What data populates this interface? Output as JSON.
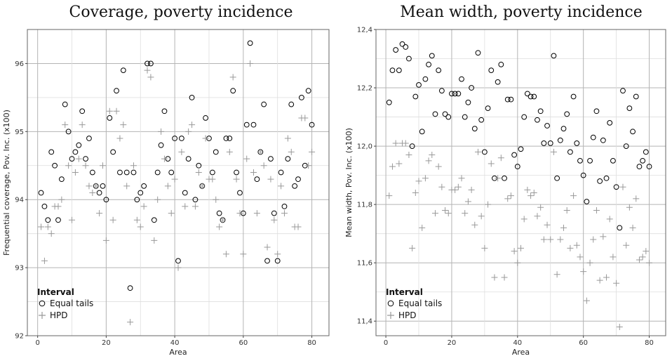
{
  "chart_data": [
    {
      "type": "scatter",
      "title": "Coverage, poverty incidence",
      "xlabel": "Area",
      "ylabel": "Frequential coverage, Pov. Inc. (x100)",
      "xlim": [
        -3,
        85
      ],
      "ylim": [
        92,
        96.5
      ],
      "xticks": [
        0,
        20,
        40,
        60,
        80
      ],
      "yticks": [
        92,
        93,
        94,
        95,
        96
      ],
      "ytick_labels": [
        "92",
        "93",
        "94",
        "95",
        "96"
      ],
      "grid": true,
      "legend": {
        "title": "Interval",
        "placement": "bottom-left"
      },
      "series": [
        {
          "name": "Equal tails",
          "marker": "circle",
          "color": "#000000",
          "values": [
            94.1,
            93.9,
            93.7,
            94.7,
            94.5,
            93.7,
            94.3,
            95.4,
            95.0,
            94.6,
            94.7,
            94.8,
            95.3,
            94.6,
            94.9,
            94.4,
            94.2,
            94.1,
            94.2,
            94.0,
            95.2,
            94.7,
            95.6,
            94.4,
            95.9,
            94.4,
            92.7,
            94.4,
            94.0,
            94.1,
            94.2,
            96.0,
            96.0,
            93.7,
            94.4,
            94.8,
            95.3,
            94.6,
            94.4,
            94.9,
            93.1,
            94.9,
            94.1,
            94.6,
            95.5,
            94.0,
            94.5,
            94.2,
            95.2,
            94.9,
            94.4,
            94.7,
            93.8,
            93.7,
            94.9,
            94.9,
            95.6,
            94.4,
            94.1,
            93.8,
            95.1,
            96.3,
            95.1,
            94.3,
            94.7,
            95.4,
            93.1,
            94.6,
            93.8,
            93.1,
            94.4,
            93.9,
            94.6,
            95.4,
            94.2,
            94.3,
            95.5,
            94.5,
            95.6,
            95.1
          ]
        },
        {
          "name": "HPD",
          "marker": "plus",
          "color": "#999999",
          "values": [
            93.6,
            93.1,
            93.6,
            93.5,
            93.9,
            93.9,
            94.0,
            95.1,
            94.5,
            93.7,
            94.4,
            94.6,
            95.1,
            94.5,
            94.2,
            94.1,
            94.2,
            93.8,
            94.5,
            93.4,
            95.3,
            93.7,
            95.3,
            94.9,
            95.1,
            94.2,
            92.2,
            94.5,
            93.7,
            93.6,
            93.9,
            95.9,
            95.8,
            93.4,
            94.0,
            95.0,
            94.6,
            94.2,
            93.8,
            94.3,
            93.0,
            94.7,
            93.9,
            95.0,
            95.1,
            93.9,
            94.4,
            94.2,
            94.9,
            94.3,
            94.3,
            94.0,
            93.6,
            93.7,
            93.2,
            94.7,
            95.8,
            94.3,
            93.8,
            93.2,
            94.6,
            96.0,
            94.4,
            93.8,
            94.7,
            94.5,
            93.3,
            94.3,
            93.7,
            93.2,
            94.2,
            93.8,
            94.9,
            94.7,
            93.6,
            93.6,
            95.2,
            95.2,
            94.5,
            94.7
          ]
        }
      ]
    },
    {
      "type": "scatter",
      "title": "Mean width, poverty incidence",
      "xlabel": "Area",
      "ylabel": "Mean width, Pov. Inc. (x100)",
      "xlim": [
        -3,
        85
      ],
      "ylim": [
        11.35,
        12.4
      ],
      "xticks": [
        0,
        20,
        40,
        60,
        80
      ],
      "yticks": [
        11.4,
        11.6,
        11.8,
        12.0,
        12.2,
        12.4
      ],
      "ytick_labels": [
        "11,4",
        "11,6",
        "11,8",
        "12,0",
        "12,2",
        "12,4"
      ],
      "grid": true,
      "legend": {
        "title": "Interval",
        "placement": "bottom-left"
      },
      "series": [
        {
          "name": "Equal tails",
          "marker": "circle",
          "color": "#000000",
          "values": [
            12.15,
            12.26,
            12.33,
            12.26,
            12.35,
            12.34,
            12.3,
            12.0,
            12.17,
            12.21,
            12.05,
            12.23,
            12.28,
            12.31,
            12.11,
            12.26,
            12.19,
            12.11,
            12.1,
            12.18,
            12.18,
            12.18,
            12.23,
            12.1,
            12.15,
            12.2,
            12.06,
            12.32,
            12.09,
            11.98,
            12.13,
            12.26,
            11.89,
            12.22,
            12.28,
            11.89,
            12.16,
            12.16,
            11.97,
            11.93,
            11.99,
            12.1,
            12.18,
            12.17,
            12.17,
            12.09,
            12.12,
            12.01,
            12.07,
            12.01,
            12.31,
            11.89,
            12.02,
            12.06,
            12.11,
            11.98,
            12.17,
            12.01,
            11.95,
            11.9,
            11.81,
            11.95,
            12.03,
            12.12,
            11.88,
            12.02,
            11.89,
            12.08,
            11.95,
            11.86,
            11.72,
            12.19,
            12.0,
            12.13,
            12.05,
            12.17,
            11.93,
            11.95,
            11.98,
            11.93
          ]
        },
        {
          "name": "HPD",
          "marker": "plus",
          "color": "#999999",
          "values": [
            11.83,
            11.93,
            12.01,
            11.94,
            12.01,
            12.01,
            11.97,
            11.65,
            11.84,
            11.88,
            11.72,
            11.89,
            11.95,
            11.97,
            11.77,
            11.93,
            11.86,
            11.78,
            11.77,
            11.85,
            11.85,
            11.86,
            11.89,
            11.77,
            11.81,
            11.85,
            11.73,
            11.98,
            11.76,
            11.65,
            11.8,
            11.94,
            11.55,
            11.89,
            11.96,
            11.55,
            11.82,
            11.83,
            11.64,
            11.6,
            11.65,
            11.75,
            11.85,
            11.83,
            11.84,
            11.76,
            11.79,
            11.68,
            11.73,
            11.68,
            11.98,
            11.56,
            11.68,
            11.72,
            11.78,
            11.65,
            11.83,
            11.66,
            11.62,
            11.57,
            11.47,
            11.6,
            11.68,
            11.78,
            11.54,
            11.69,
            11.55,
            11.75,
            11.62,
            11.53,
            11.38,
            11.86,
            11.66,
            11.79,
            11.72,
            11.82,
            11.61,
            11.62,
            11.64,
            11.6
          ]
        }
      ]
    }
  ]
}
